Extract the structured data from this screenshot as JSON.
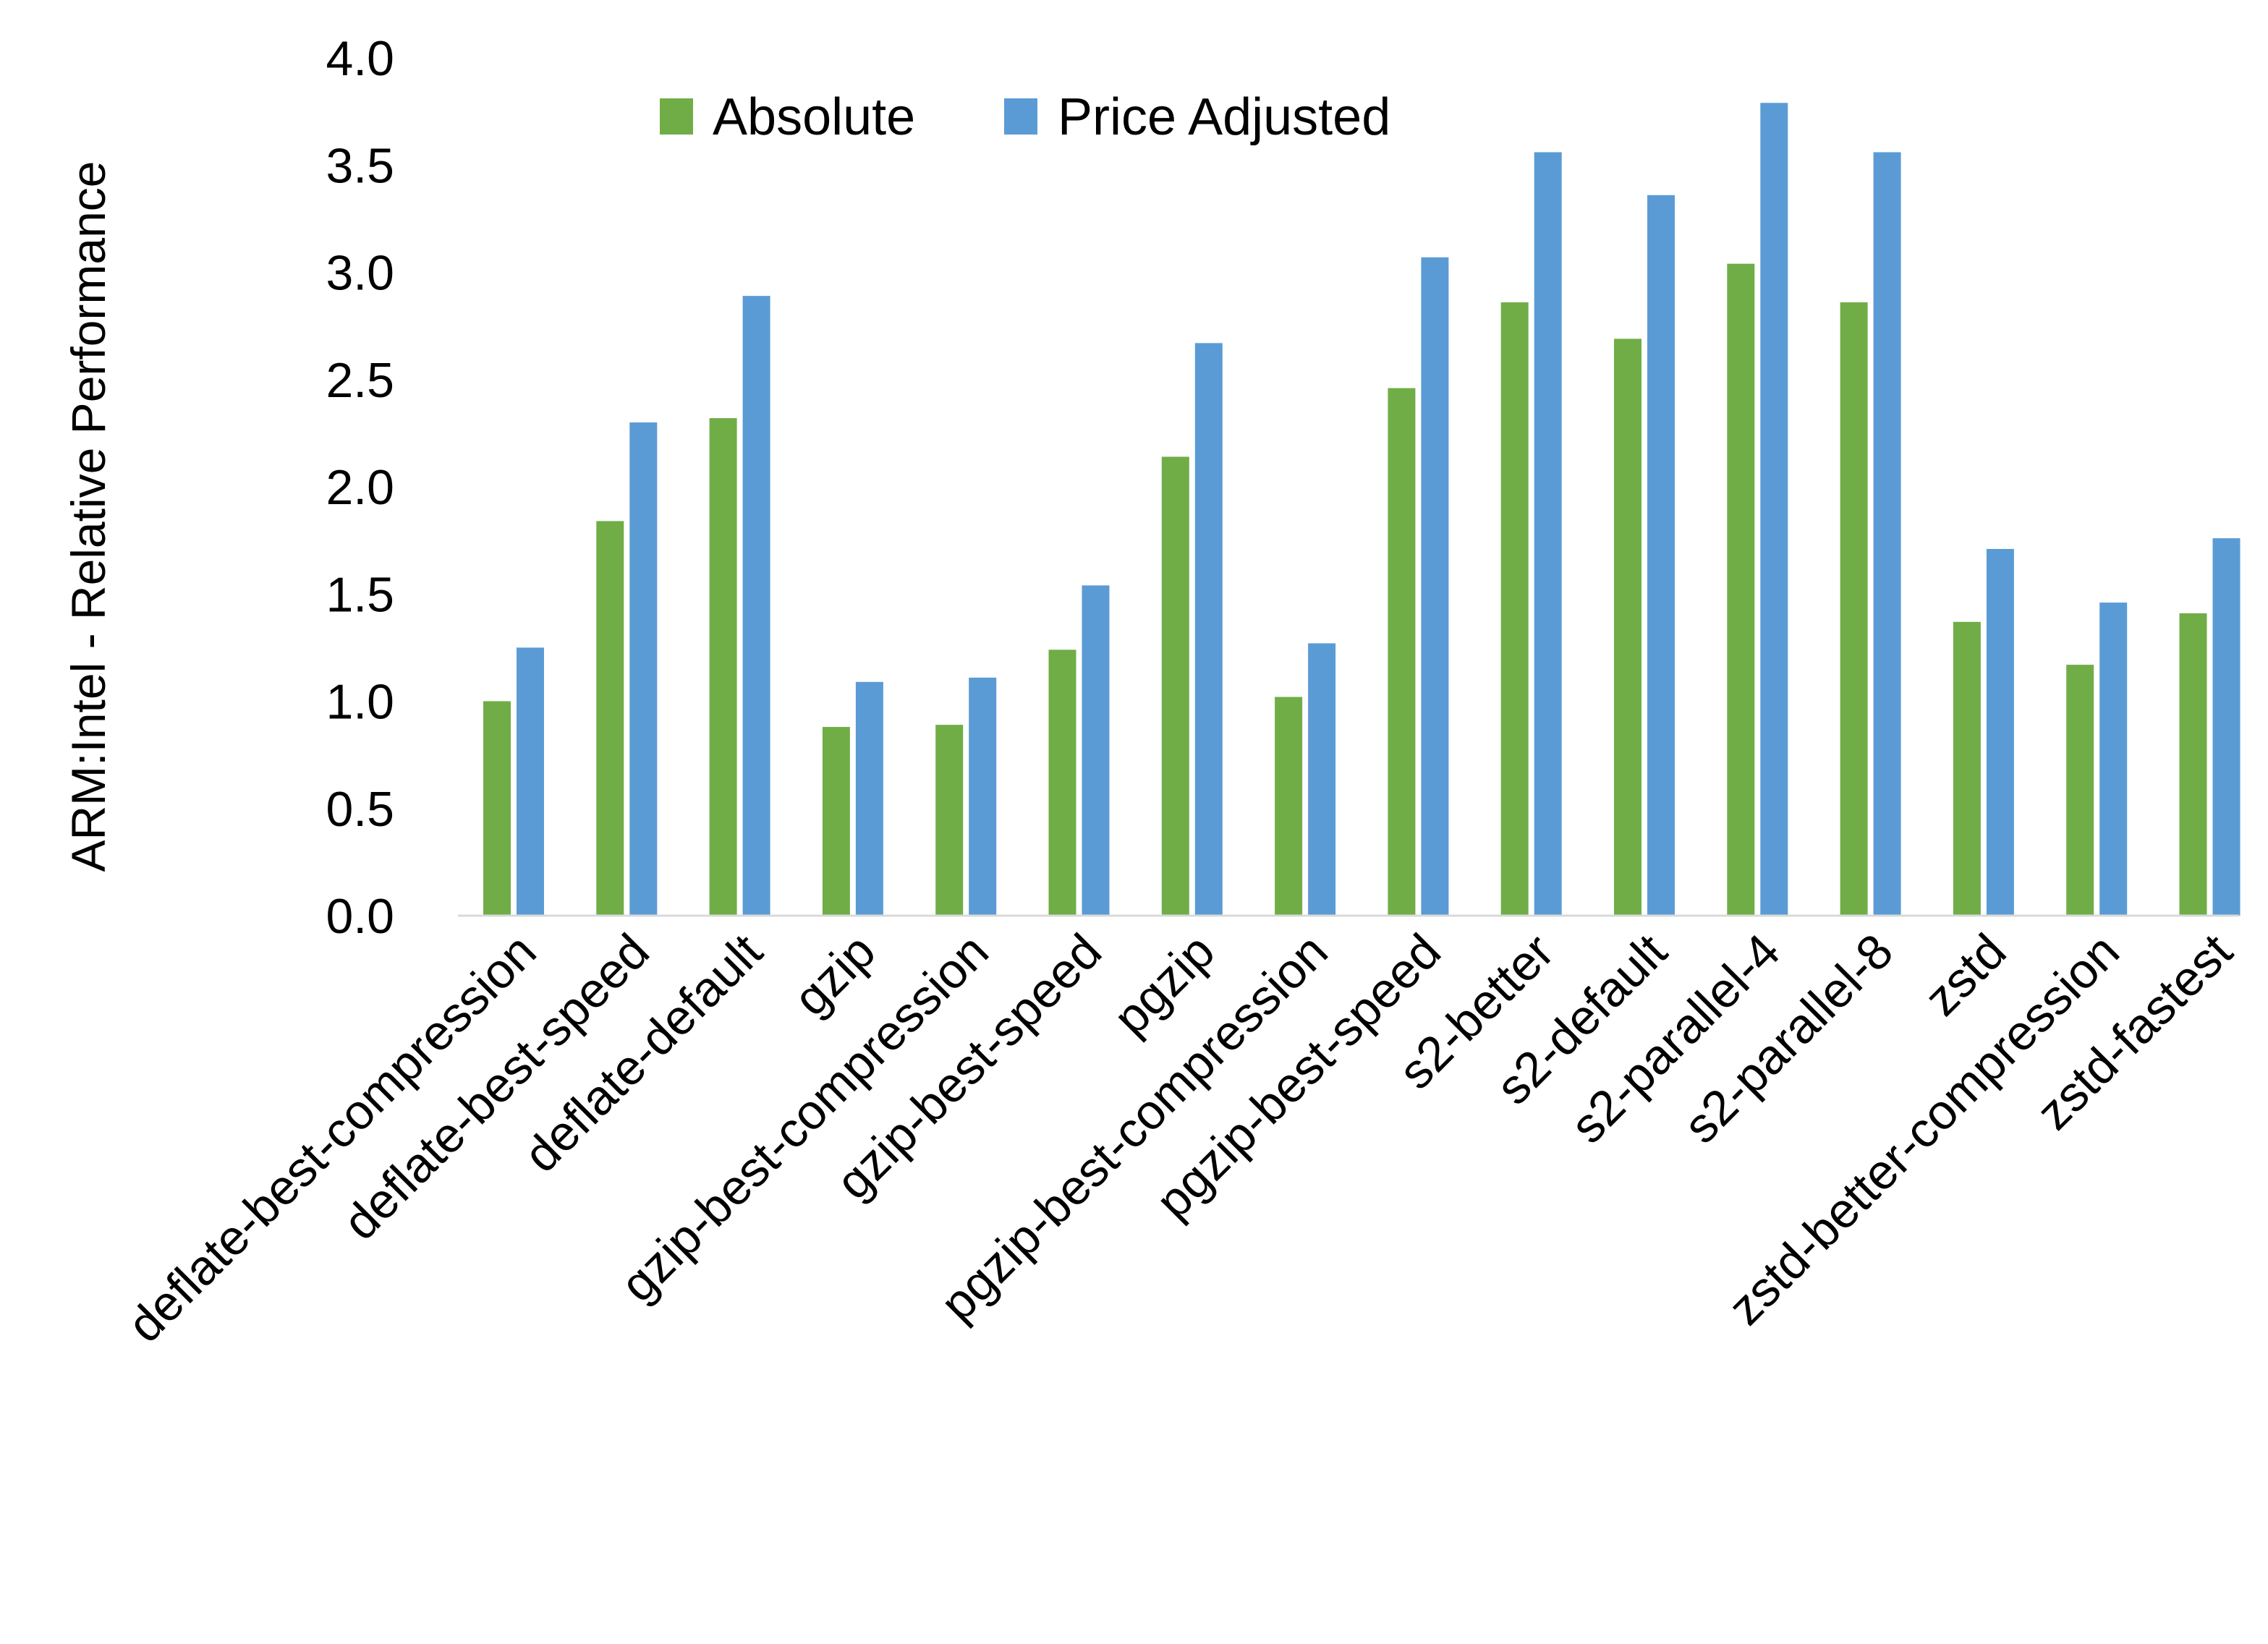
{
  "chart_data": {
    "type": "bar",
    "title": "",
    "xlabel": "",
    "ylabel": "ARM:Intel - Relative Performance",
    "ylim": [
      0,
      4.0
    ],
    "yticks": [
      "0.0",
      "0.5",
      "1.0",
      "1.5",
      "2.0",
      "2.5",
      "3.0",
      "3.5",
      "4.0"
    ],
    "grid": false,
    "legend_placement": "top-center",
    "categories": [
      "deflate-best-compression",
      "deflate-best-speed",
      "deflate-default",
      "gzip",
      "gzip-best-compression",
      "gzip-best-speed",
      "pgzip",
      "pgzip-best-compression",
      "pgzip-best-speed",
      "s2-better",
      "s2-default",
      "s2-parallel-4",
      "s2-parallel-8",
      "zstd",
      "zstd-better-compression",
      "zstd-fastest"
    ],
    "series": [
      {
        "name": "Absolute",
        "color": "#70AD47",
        "values": [
          1.0,
          1.84,
          2.32,
          0.88,
          0.89,
          1.24,
          2.14,
          1.02,
          2.46,
          2.86,
          2.69,
          3.04,
          2.86,
          1.37,
          1.17,
          1.41
        ]
      },
      {
        "name": "Price Adjusted",
        "color": "#5B9BD5",
        "values": [
          1.25,
          2.3,
          2.89,
          1.09,
          1.11,
          1.54,
          2.67,
          1.27,
          3.07,
          3.56,
          3.36,
          3.79,
          3.56,
          1.71,
          1.46,
          1.76
        ]
      }
    ]
  }
}
